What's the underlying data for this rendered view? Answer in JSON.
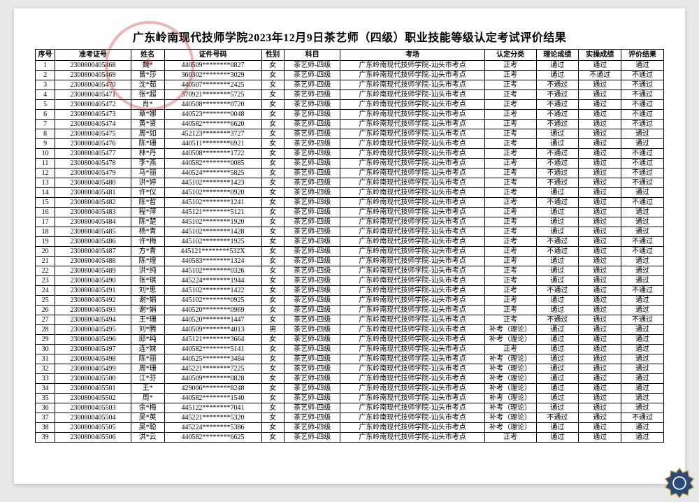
{
  "title": "广东岭南现代技师学院2023年12月9日茶艺师（四级）职业技能等级认定考试评价结果",
  "headers": [
    "序号",
    "准考证号",
    "姓名",
    "证件号码",
    "性别",
    "科目",
    "考场",
    "认定分类",
    "理论成绩",
    "实操成绩",
    "评价结果"
  ],
  "subject": "茶艺师-四级",
  "room": "广东岭南现代技师学院-汕头市考点",
  "cat_regular": "正考",
  "cat_retake": "补考（理论）",
  "pass": "通过",
  "fail": "不通过",
  "rows": [
    {
      "i": 1,
      "a": "2300800405468",
      "n": "魏*",
      "id": "440509********0827",
      "s": "女",
      "c": "r",
      "t": "p",
      "p": "p",
      "r": "p"
    },
    {
      "i": 2,
      "a": "2300800405469",
      "n": "曾*莎",
      "id": "360302********3029",
      "s": "女",
      "c": "r",
      "t": "p",
      "p": "f",
      "r": "f"
    },
    {
      "i": 3,
      "a": "2300800405470",
      "n": "沈*茹",
      "id": "440507********2425",
      "s": "女",
      "c": "r",
      "t": "f",
      "p": "p",
      "r": "f"
    },
    {
      "i": 4,
      "a": "2300800405471",
      "n": "张*超",
      "id": "370921********5725",
      "s": "女",
      "c": "r",
      "t": "f",
      "p": "p",
      "r": "f"
    },
    {
      "i": 5,
      "a": "2300800405472",
      "n": "肖*",
      "id": "440508********0720",
      "s": "女",
      "c": "r",
      "t": "f",
      "p": "p",
      "r": "f"
    },
    {
      "i": 6,
      "a": "2300800405473",
      "n": "章*娜",
      "id": "440523********0048",
      "s": "女",
      "c": "r",
      "t": "f",
      "p": "p",
      "r": "f"
    },
    {
      "i": 7,
      "a": "2300800405474",
      "n": "黄*贤",
      "id": "440582********6620",
      "s": "女",
      "c": "r",
      "t": "f",
      "p": "p",
      "r": "f"
    },
    {
      "i": 8,
      "a": "2300800405475",
      "n": "周*如",
      "id": "452123********3727",
      "s": "女",
      "c": "r",
      "t": "p",
      "p": "p",
      "r": "p"
    },
    {
      "i": 9,
      "a": "2300800405476",
      "n": "陈*珊",
      "id": "440511********6921",
      "s": "女",
      "c": "r",
      "t": "p",
      "p": "p",
      "r": "p"
    },
    {
      "i": 10,
      "a": "2300800405477",
      "n": "林*丹",
      "id": "440508********1722",
      "s": "女",
      "c": "r",
      "t": "f",
      "p": "p",
      "r": "f"
    },
    {
      "i": 11,
      "a": "2300800405478",
      "n": "李*燕",
      "id": "440582********0085",
      "s": "女",
      "c": "r",
      "t": "f",
      "p": "p",
      "r": "f"
    },
    {
      "i": 12,
      "a": "2300800405479",
      "n": "马*丽",
      "id": "440524********5825",
      "s": "女",
      "c": "r",
      "t": "f",
      "p": "p",
      "r": "f"
    },
    {
      "i": 13,
      "a": "2300800405480",
      "n": "洪*婷",
      "id": "445102********1423",
      "s": "女",
      "c": "r",
      "t": "f",
      "p": "p",
      "r": "f"
    },
    {
      "i": 14,
      "a": "2300800405481",
      "n": "许*仪",
      "id": "445102********0920",
      "s": "女",
      "c": "r",
      "t": "p",
      "p": "p",
      "r": "p"
    },
    {
      "i": 15,
      "a": "2300800405482",
      "n": "陈*哲",
      "id": "445102********1241",
      "s": "女",
      "c": "r",
      "t": "f",
      "p": "p",
      "r": "f"
    },
    {
      "i": 16,
      "a": "2300800405483",
      "n": "程*萍",
      "id": "445121********5121",
      "s": "女",
      "c": "r",
      "t": "p",
      "p": "p",
      "r": "p"
    },
    {
      "i": 17,
      "a": "2300800405484",
      "n": "陈*楚",
      "id": "445102********1920",
      "s": "女",
      "c": "r",
      "t": "p",
      "p": "p",
      "r": "p"
    },
    {
      "i": 18,
      "a": "2300800405485",
      "n": "杨*青",
      "id": "445102********1428",
      "s": "女",
      "c": "r",
      "t": "p",
      "p": "p",
      "r": "p"
    },
    {
      "i": 19,
      "a": "2300800405486",
      "n": "许*梅",
      "id": "445102********1925",
      "s": "女",
      "c": "r",
      "t": "f",
      "p": "p",
      "r": "f"
    },
    {
      "i": 20,
      "a": "2300800405487",
      "n": "方*青",
      "id": "445121********532X",
      "s": "女",
      "c": "r",
      "t": "f",
      "p": "p",
      "r": "f"
    },
    {
      "i": 21,
      "a": "2300800405488",
      "n": "陈*煌",
      "id": "440583********1324",
      "s": "女",
      "c": "r",
      "t": "p",
      "p": "p",
      "r": "p"
    },
    {
      "i": 22,
      "a": "2300800405489",
      "n": "洪*纯",
      "id": "445102********0326",
      "s": "女",
      "c": "r",
      "t": "p",
      "p": "p",
      "r": "p"
    },
    {
      "i": 23,
      "a": "2300800405490",
      "n": "张*琪",
      "id": "445224********1944",
      "s": "女",
      "c": "r",
      "t": "p",
      "p": "p",
      "r": "p"
    },
    {
      "i": 24,
      "a": "2300800405491",
      "n": "刘*思",
      "id": "445102********1422",
      "s": "女",
      "c": "r",
      "t": "f",
      "p": "p",
      "r": "f"
    },
    {
      "i": 25,
      "a": "2300800405492",
      "n": "谢*娟",
      "id": "445102********0925",
      "s": "女",
      "c": "r",
      "t": "p",
      "p": "p",
      "r": "p"
    },
    {
      "i": 26,
      "a": "2300800405493",
      "n": "谢*娟",
      "id": "440520********0969",
      "s": "女",
      "c": "r",
      "t": "p",
      "p": "p",
      "r": "p"
    },
    {
      "i": 27,
      "a": "2300800405494",
      "n": "王*珊",
      "id": "440520********1447",
      "s": "女",
      "c": "r",
      "t": "f",
      "p": "p",
      "r": "f"
    },
    {
      "i": 28,
      "a": "2300800405495",
      "n": "刘*腾",
      "id": "440509********4013",
      "s": "男",
      "c": "k",
      "t": "p",
      "p": "p",
      "r": "p"
    },
    {
      "i": 29,
      "a": "2300800405496",
      "n": "邸*纯",
      "id": "445121********3664",
      "s": "女",
      "c": "k",
      "t": "p",
      "p": "p",
      "r": "p"
    },
    {
      "i": 30,
      "a": "2300800405497",
      "n": "连*妹",
      "id": "440582********5141",
      "s": "女",
      "c": "r",
      "t": "p",
      "p": "p",
      "r": "p"
    },
    {
      "i": 31,
      "a": "2300800405498",
      "n": "陈*丽",
      "id": "440525********3484",
      "s": "女",
      "c": "k",
      "t": "p",
      "p": "p",
      "r": "p"
    },
    {
      "i": 32,
      "a": "2300800405499",
      "n": "周*珊",
      "id": "445221********7225",
      "s": "女",
      "c": "k",
      "t": "p",
      "p": "p",
      "r": "p"
    },
    {
      "i": 33,
      "a": "2300800405500",
      "n": "江*芬",
      "id": "440509********0828",
      "s": "女",
      "c": "k",
      "t": "p",
      "p": "p",
      "r": "p"
    },
    {
      "i": 34,
      "a": "2300800405501",
      "n": "王*",
      "id": "429006********8248",
      "s": "女",
      "c": "k",
      "t": "p",
      "p": "p",
      "r": "p"
    },
    {
      "i": 35,
      "a": "2300800405502",
      "n": "周*",
      "id": "440582********1540",
      "s": "女",
      "c": "k",
      "t": "p",
      "p": "p",
      "r": "p"
    },
    {
      "i": 36,
      "a": "2300800405503",
      "n": "余*梅",
      "id": "445122********7041",
      "s": "女",
      "c": "k",
      "t": "p",
      "p": "p",
      "r": "p"
    },
    {
      "i": 37,
      "a": "2300800405504",
      "n": "吴*英",
      "id": "445221********5320",
      "s": "女",
      "c": "k",
      "t": "f",
      "p": "p",
      "r": "f"
    },
    {
      "i": 38,
      "a": "2300800405505",
      "n": "吴*聪",
      "id": "445224********5386",
      "s": "女",
      "c": "k",
      "t": "p",
      "p": "p",
      "r": "p"
    },
    {
      "i": 39,
      "a": "2300800405506",
      "n": "洪*云",
      "id": "440582********6625",
      "s": "女",
      "c": "r",
      "t": "p",
      "p": "p",
      "r": "p"
    }
  ]
}
